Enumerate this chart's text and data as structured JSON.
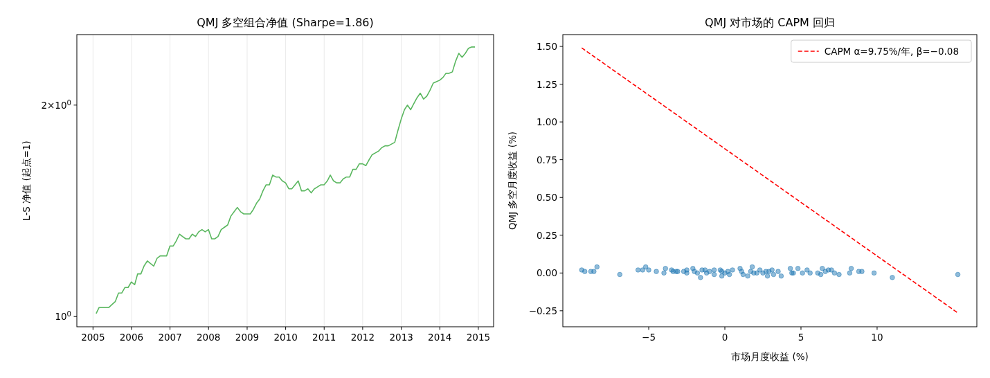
{
  "chart_data": [
    {
      "type": "line",
      "title": "QMJ 多空组合净值 (Sharpe=1.86)",
      "ylabel": "L-S 净值 (起点=1)",
      "log": "y",
      "grid": "x",
      "x": [
        "2005-01-31",
        "2005-02-28",
        "2005-03-31",
        "2005-04-30",
        "2005-05-31",
        "2005-06-30",
        "2005-07-31",
        "2005-08-31",
        "2005-09-30",
        "2005-10-31",
        "2005-11-30",
        "2005-12-31",
        "2006-01-31",
        "2006-02-28",
        "2006-03-31",
        "2006-04-30",
        "2006-05-31",
        "2006-06-30",
        "2006-07-31",
        "2006-08-31",
        "2006-09-30",
        "2006-10-31",
        "2006-11-30",
        "2006-12-31",
        "2007-01-31",
        "2007-02-28",
        "2007-03-31",
        "2007-04-30",
        "2007-05-31",
        "2007-06-30",
        "2007-07-31",
        "2007-08-31",
        "2007-09-30",
        "2007-10-31",
        "2007-11-30",
        "2007-12-31",
        "2008-01-31",
        "2008-02-29",
        "2008-03-31",
        "2008-04-30",
        "2008-05-31",
        "2008-06-30",
        "2008-07-31",
        "2008-08-31",
        "2008-09-30",
        "2008-10-31",
        "2008-11-30",
        "2008-12-31",
        "2009-01-31",
        "2009-02-28",
        "2009-03-31",
        "2009-04-30",
        "2009-05-31",
        "2009-06-30",
        "2009-07-31",
        "2009-08-31",
        "2009-09-30",
        "2009-10-31",
        "2009-11-30",
        "2009-12-31",
        "2010-01-31",
        "2010-02-28",
        "2010-03-31",
        "2010-04-30",
        "2010-05-31",
        "2010-06-30",
        "2010-07-31",
        "2010-08-31",
        "2010-09-30",
        "2010-10-31",
        "2010-11-30",
        "2010-12-31",
        "2011-01-31",
        "2011-02-28",
        "2011-03-31",
        "2011-04-30",
        "2011-05-31",
        "2011-06-30",
        "2011-07-31",
        "2011-08-31",
        "2011-09-30",
        "2011-10-31",
        "2011-11-30",
        "2011-12-31",
        "2012-01-31",
        "2012-02-29",
        "2012-03-31",
        "2012-04-30",
        "2012-05-31",
        "2012-06-30",
        "2012-07-31",
        "2012-08-31",
        "2012-09-30",
        "2012-10-31",
        "2012-11-30",
        "2012-12-31",
        "2013-01-31",
        "2013-02-28",
        "2013-03-31",
        "2013-04-30",
        "2013-05-31",
        "2013-06-30",
        "2013-07-31",
        "2013-08-31",
        "2013-09-30",
        "2013-10-31",
        "2013-11-30",
        "2013-12-31",
        "2014-01-31",
        "2014-02-28",
        "2014-03-31",
        "2014-04-30",
        "2014-05-31",
        "2014-06-30",
        "2014-07-31",
        "2014-08-31",
        "2014-09-30",
        "2014-10-31",
        "2014-11-30"
      ],
      "series": [
        {
          "color": "#5ab75f",
          "values": [
            1.01,
            1.03,
            1.03,
            1.03,
            1.03,
            1.04,
            1.05,
            1.08,
            1.08,
            1.1,
            1.1,
            1.12,
            1.11,
            1.15,
            1.15,
            1.18,
            1.2,
            1.19,
            1.18,
            1.21,
            1.22,
            1.22,
            1.22,
            1.26,
            1.26,
            1.28,
            1.31,
            1.3,
            1.29,
            1.29,
            1.31,
            1.3,
            1.32,
            1.33,
            1.32,
            1.33,
            1.29,
            1.29,
            1.3,
            1.33,
            1.34,
            1.35,
            1.39,
            1.41,
            1.43,
            1.41,
            1.4,
            1.4,
            1.4,
            1.42,
            1.45,
            1.47,
            1.51,
            1.54,
            1.54,
            1.59,
            1.58,
            1.58,
            1.56,
            1.55,
            1.52,
            1.52,
            1.54,
            1.56,
            1.51,
            1.51,
            1.52,
            1.5,
            1.52,
            1.53,
            1.54,
            1.54,
            1.56,
            1.59,
            1.56,
            1.55,
            1.55,
            1.57,
            1.58,
            1.58,
            1.62,
            1.62,
            1.65,
            1.65,
            1.64,
            1.67,
            1.7,
            1.71,
            1.72,
            1.74,
            1.75,
            1.75,
            1.76,
            1.77,
            1.84,
            1.91,
            1.97,
            2.0,
            1.97,
            2.01,
            2.05,
            2.08,
            2.04,
            2.06,
            2.1,
            2.15,
            2.16,
            2.17,
            2.19,
            2.22,
            2.22,
            2.23,
            2.31,
            2.37,
            2.34,
            2.37,
            2.41,
            2.42,
            2.42
          ]
        }
      ],
      "xlim": [
        "2004-08-01",
        "2015-05-26"
      ],
      "xticks": [
        "2005",
        "2006",
        "2007",
        "2008",
        "2009",
        "2010",
        "2011",
        "2012",
        "2013",
        "2014",
        "2015"
      ],
      "ylim": [
        0.967,
        2.52
      ],
      "yticks": [
        {
          "value": 1,
          "label": "10$^{0}$"
        },
        {
          "value": 2,
          "label": "2×10$^{0}$"
        }
      ]
    },
    {
      "type": "scatter",
      "title": "QMJ 对市场的 CAPM 回归",
      "xlabel": "市场月度收益 (%)",
      "ylabel": "QMJ 多空月度收益 (%)",
      "legend": "top right",
      "series": [
        {
          "color": "#1f77b4",
          "marker": "circle",
          "x": [
            -9.4,
            -9.2,
            -8.8,
            -8.6,
            -8.4,
            -6.9,
            -5.7,
            -5.4,
            -5.2,
            -5.0,
            -4.5,
            -4.0,
            -3.9,
            -3.5,
            -3.4,
            -3.2,
            -3.1,
            -2.7,
            -2.5,
            -2.5,
            -2.1,
            -2.0,
            -1.8,
            -1.6,
            -1.5,
            -1.3,
            -1.2,
            -1.0,
            -0.7,
            -0.7,
            -0.3,
            -0.2,
            -0.2,
            0.0,
            0.2,
            0.3,
            0.5,
            1.0,
            1.1,
            1.2,
            1.5,
            1.7,
            1.8,
            1.9,
            2.1,
            2.3,
            2.5,
            2.7,
            2.8,
            2.9,
            3.1,
            3.2,
            3.5,
            3.7,
            4.3,
            4.4,
            4.5,
            4.8,
            5.1,
            5.4,
            5.6,
            6.1,
            6.3,
            6.4,
            6.6,
            6.8,
            7.0,
            7.2,
            7.5,
            8.2,
            8.3,
            8.8,
            9.0,
            9.8,
            11.0,
            15.3
          ],
          "values": [
            0.02,
            0.01,
            0.01,
            0.01,
            0.04,
            -0.01,
            0.02,
            0.02,
            0.04,
            0.02,
            0.01,
            0.0,
            0.03,
            0.02,
            0.01,
            0.01,
            0.01,
            0.01,
            0.02,
            0.0,
            0.03,
            0.01,
            0.0,
            -0.03,
            0.02,
            0.02,
            0.0,
            0.01,
            0.02,
            -0.01,
            0.02,
            0.01,
            -0.02,
            0.0,
            0.01,
            -0.01,
            0.02,
            0.03,
            0.01,
            -0.01,
            -0.02,
            0.01,
            0.04,
            0.0,
            0.0,
            0.02,
            0.0,
            0.01,
            -0.02,
            0.01,
            0.02,
            -0.01,
            0.01,
            -0.02,
            0.03,
            0.0,
            0.0,
            0.03,
            0.0,
            0.02,
            0.0,
            0.0,
            -0.01,
            0.03,
            0.01,
            0.02,
            0.02,
            0.0,
            -0.01,
            0.0,
            0.03,
            0.01,
            0.01,
            0.0,
            -0.03,
            -0.01
          ]
        },
        {
          "type": "line",
          "name": "CAPM α=9.75%/年, β=−0.08",
          "color": "#ff0000",
          "line_style": "dashed",
          "x": [
            -9.4,
            15.3
          ],
          "values": [
            1.49,
            -0.264
          ]
        }
      ],
      "xlim": [
        -10.64,
        16.55
      ],
      "xticks": [
        {
          "value": -5,
          "label": "−5"
        },
        0,
        5,
        10
      ],
      "ylim": [
        -0.356,
        1.578
      ],
      "yticks": [
        {
          "value": -0.25,
          "label": "−0.25"
        },
        {
          "value": 0,
          "label": "0.00"
        },
        {
          "value": 0.25,
          "label": "0.25"
        },
        {
          "value": 0.5,
          "label": "0.50"
        },
        {
          "value": 0.75,
          "label": "0.75"
        },
        {
          "value": 1,
          "label": "1.00"
        },
        {
          "value": 1.25,
          "label": "1.25"
        },
        {
          "value": 1.5,
          "label": "1.50"
        }
      ]
    }
  ]
}
